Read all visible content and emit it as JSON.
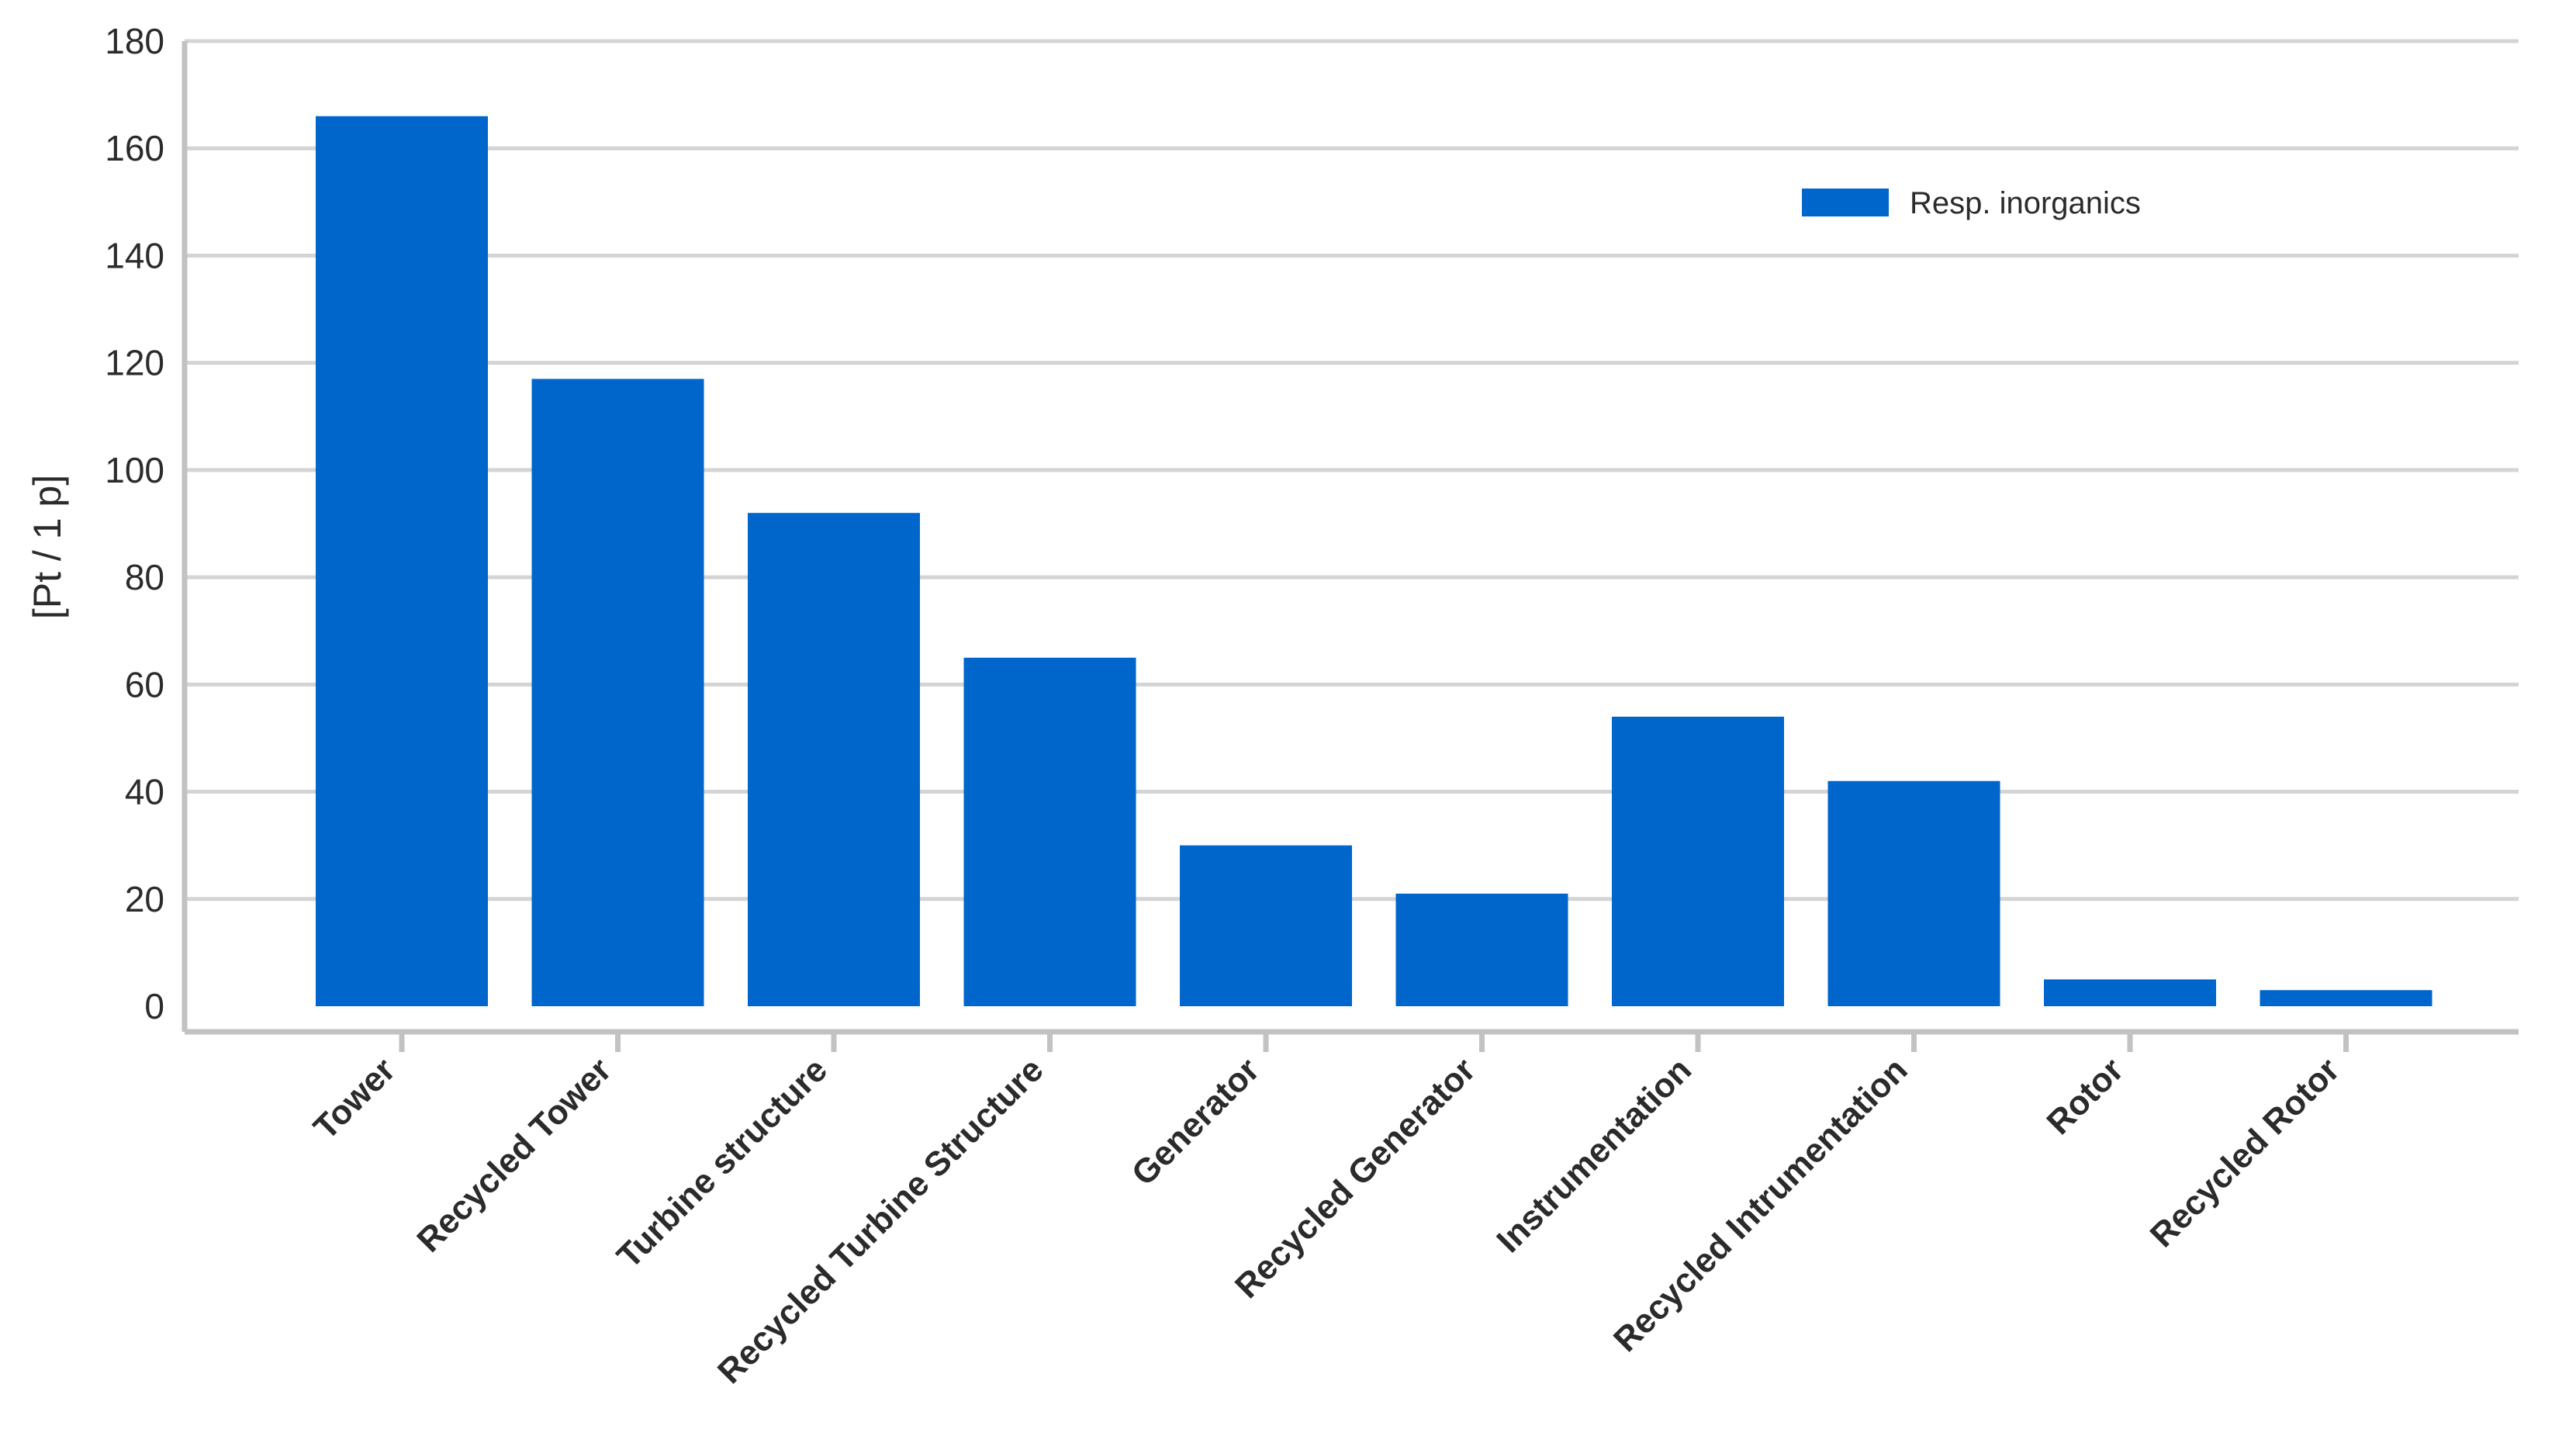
{
  "chart_data": {
    "type": "bar",
    "title": "",
    "xlabel": "",
    "ylabel": "[Pt / 1 p]",
    "ylim": [
      0,
      180
    ],
    "yticks": [
      0,
      20,
      40,
      60,
      80,
      100,
      120,
      140,
      160,
      180
    ],
    "grid": true,
    "legend_position": "top-right",
    "categories": [
      "Tower",
      "Recycled Tower",
      "Turbine structure",
      "Recycled Turbine Structure",
      "Generator",
      "Recycled Generator",
      "Instrumentation",
      "Recycled Intrumentation",
      "Rotor",
      "Recycled Rotor"
    ],
    "series": [
      {
        "name": "Resp. inorganics",
        "color": "#0066cc",
        "values": [
          166,
          117,
          92,
          65,
          30,
          21,
          54,
          42,
          5,
          3
        ]
      }
    ]
  }
}
